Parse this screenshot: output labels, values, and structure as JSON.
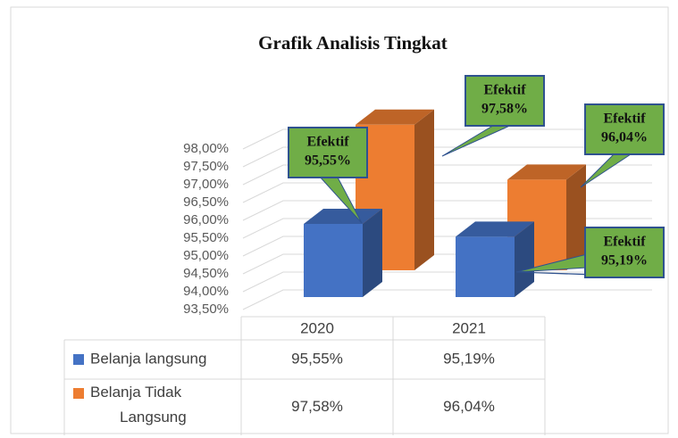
{
  "chart_data": {
    "type": "bar3d",
    "title": "Grafik Analisis Tingkat",
    "categories": [
      "2020",
      "2021"
    ],
    "series": [
      {
        "name": "Belanja langsung",
        "color": "#4472c4",
        "values": [
          95.55,
          95.19
        ],
        "value_labels": [
          "95,55%",
          "95,19%"
        ],
        "annotations": [
          "Efektif",
          "Efektif"
        ]
      },
      {
        "name": "Belanja Tidak Langsung",
        "color": "#ed7d31",
        "values": [
          97.58,
          96.04
        ],
        "value_labels": [
          "97,58%",
          "96,04%"
        ],
        "annotations": [
          "Efektif",
          "Efektif"
        ]
      }
    ],
    "ylim": [
      93.5,
      98
    ],
    "yticks": [
      {
        "value": 93.5,
        "label": "93,50%"
      },
      {
        "value": 94,
        "label": "94,00%"
      },
      {
        "value": 94.5,
        "label": "94,50%"
      },
      {
        "value": 95,
        "label": "95,00%"
      },
      {
        "value": 95.5,
        "label": "95,50%"
      },
      {
        "value": 96,
        "label": "96,00%"
      },
      {
        "value": 96.5,
        "label": "96,50%"
      },
      {
        "value": 97,
        "label": "97,00%"
      },
      {
        "value": 97.5,
        "label": "97,50%"
      },
      {
        "value": 98,
        "label": "98,00%"
      }
    ],
    "grid": true,
    "annotation_color": "#70ad47"
  }
}
